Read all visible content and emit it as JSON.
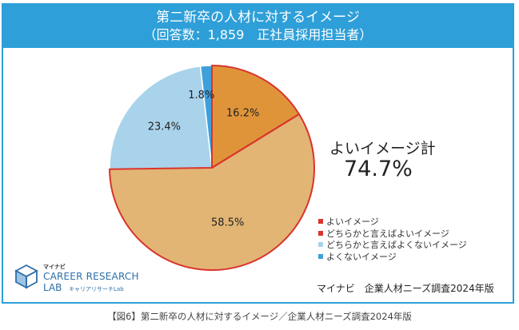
{
  "header": {
    "title": "第二新卒の人材に対するイメージ",
    "subtitle": "（回答数：1,859　正社員採用担当者）"
  },
  "summary": {
    "label": "よいイメージ計",
    "value": "74.7%"
  },
  "chart_data": {
    "type": "pie",
    "categories": [
      "よいイメージ",
      "どちらかと言えばよいイメージ",
      "どちらかと言えばよくないイメージ",
      "よくないイメージ"
    ],
    "values": [
      16.2,
      58.5,
      23.4,
      1.8
    ],
    "data_labels": [
      "16.2%",
      "58.5%",
      "23.4%",
      "1.8%"
    ],
    "colors": [
      "#e0943a",
      "#e2b574",
      "#a9d3ea",
      "#3f9fdb"
    ],
    "legend_colors": [
      "#d9342b",
      "#d9342b",
      "#a9d3ea",
      "#3f9fdb"
    ],
    "slice_border_color": "#d9342b",
    "legend_position": "right"
  },
  "logo": {
    "brand": "マイナビ",
    "line1": "CAREER RESEARCH",
    "line2": "LAB",
    "sub": "キャリアリサーチLab"
  },
  "source": "マイナビ　企業人材ニーズ調査2024年版",
  "caption": "【図6】第二新卒の人材に対するイメージ／企業人材ニーズ調査2024年版"
}
